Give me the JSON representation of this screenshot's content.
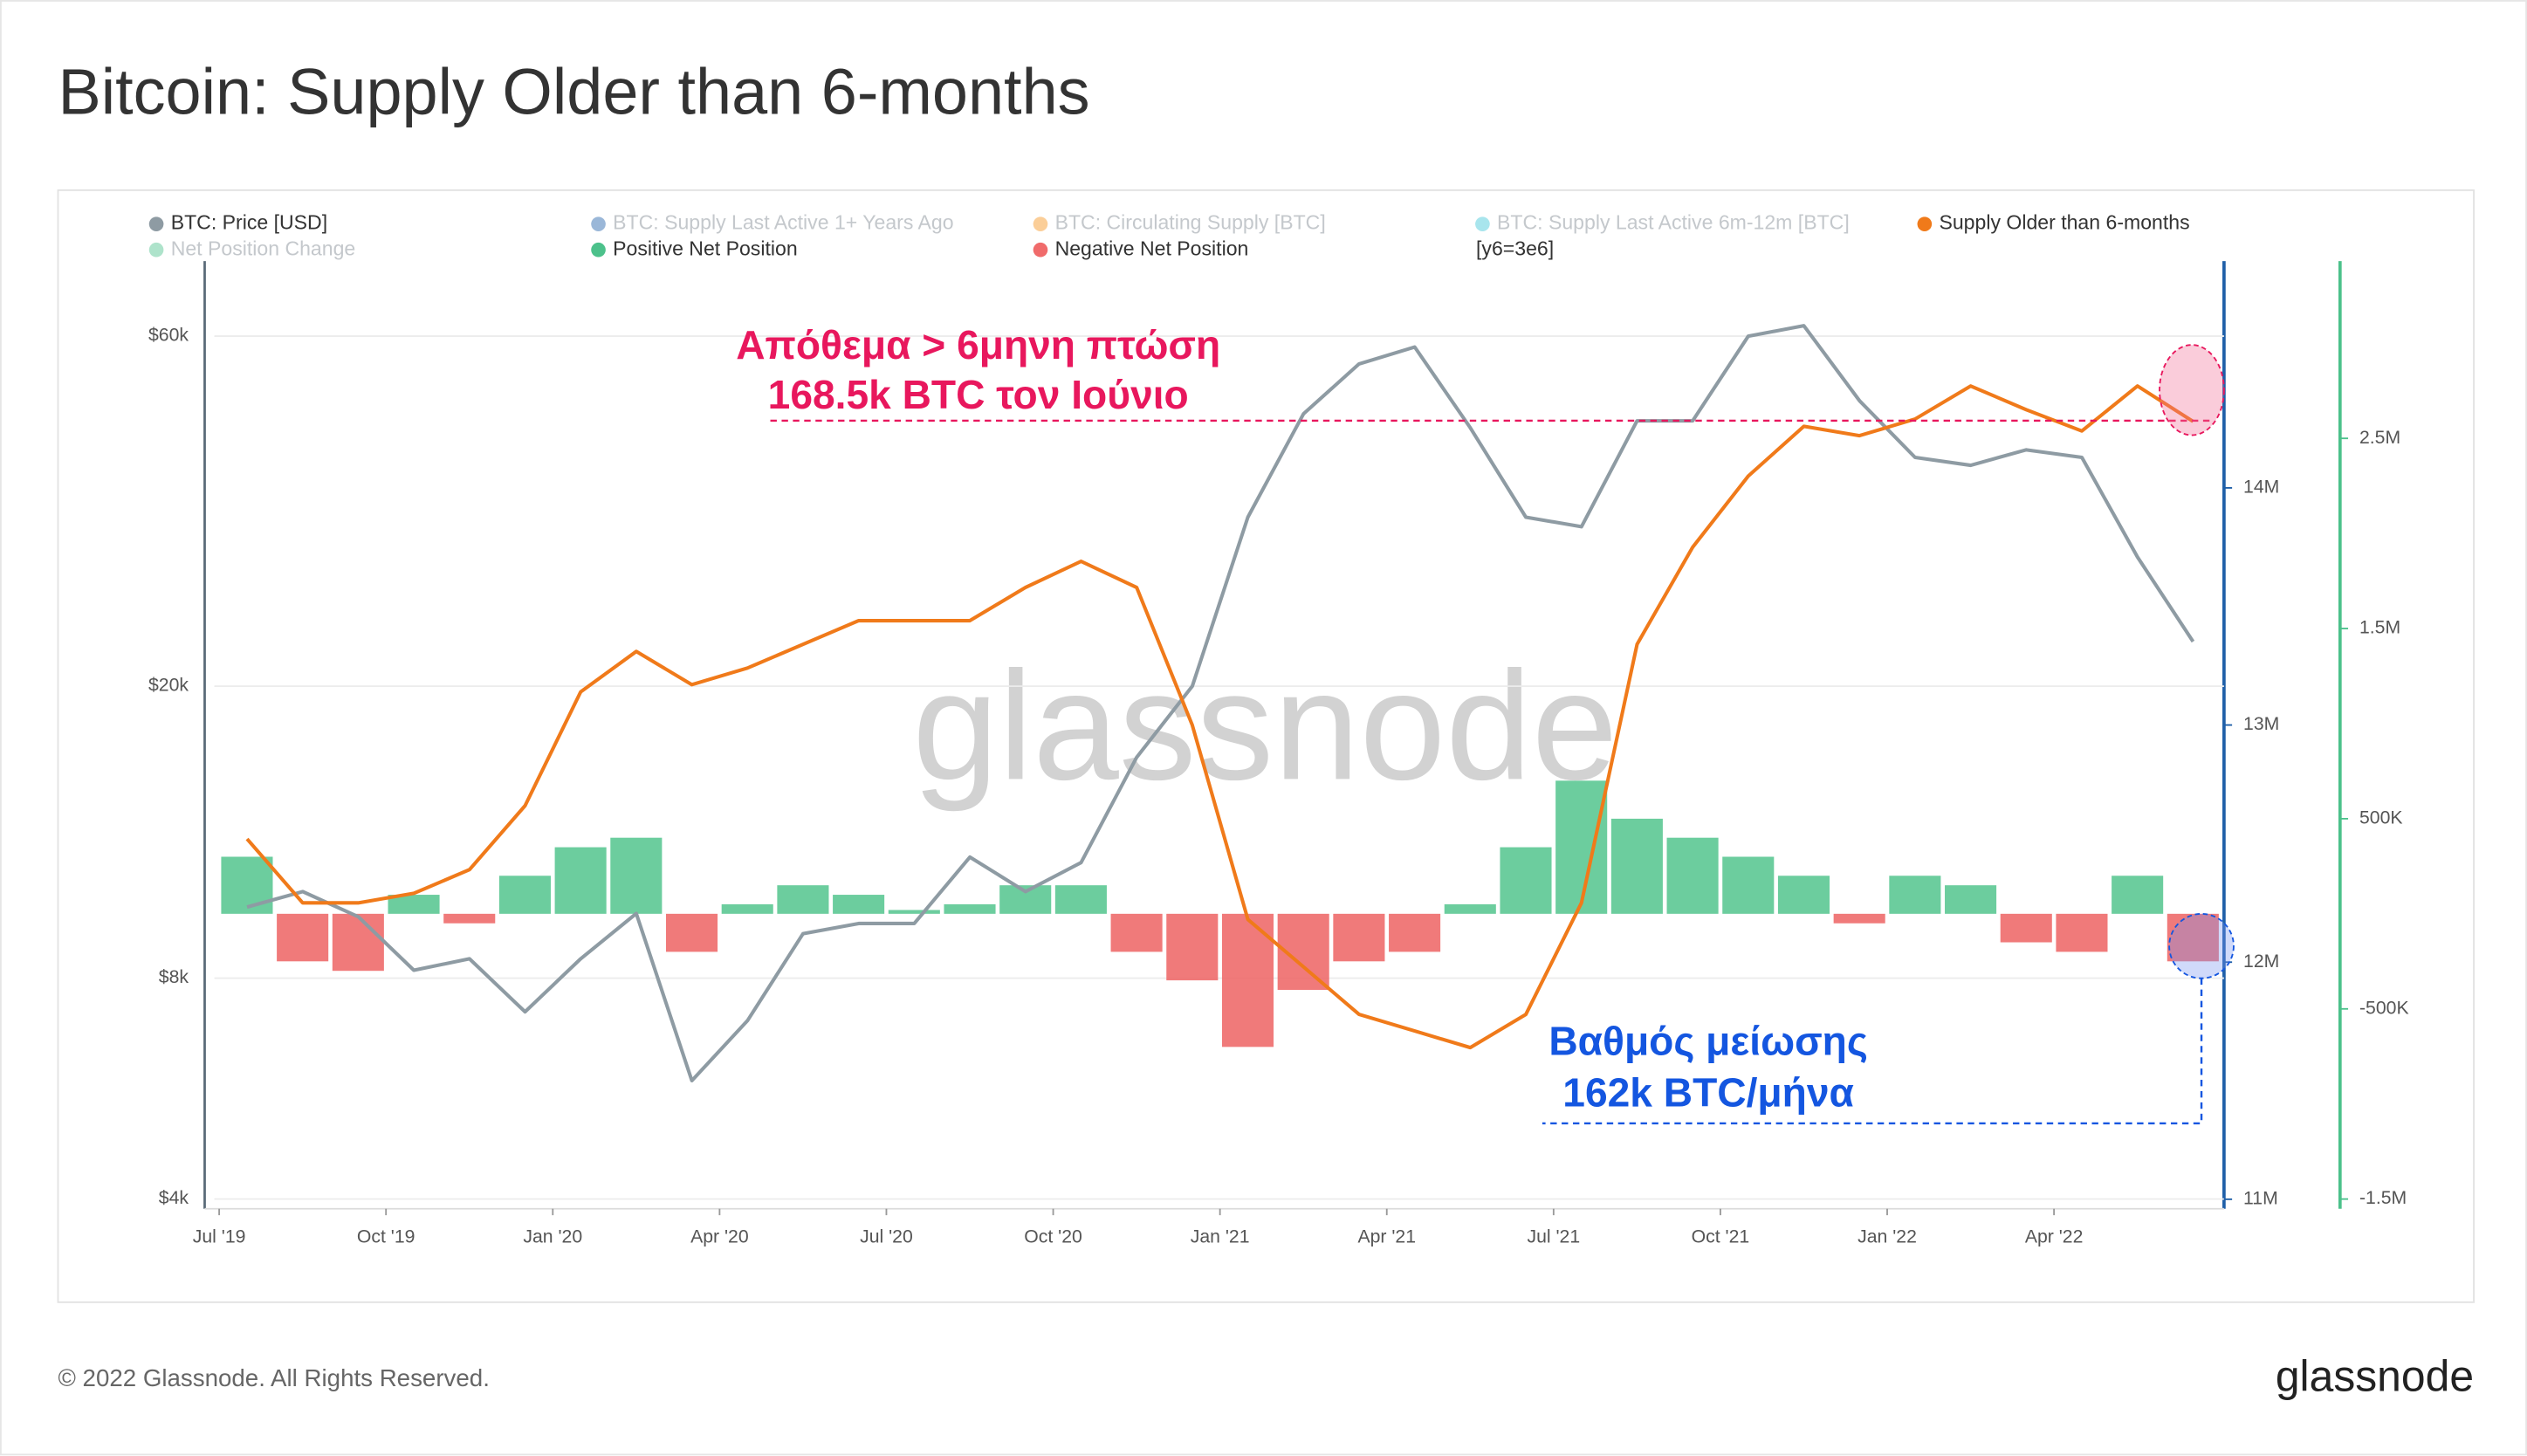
{
  "title": "Bitcoin: Supply Older than 6-months",
  "footer": "© 2022 Glassnode. All Rights Reserved.",
  "logo": "glassnode",
  "chart_data": {
    "type": "line",
    "watermark": "glassnode",
    "legend": [
      {
        "name": "BTC: Price [USD]",
        "color": "#8e9ba3",
        "active": true
      },
      {
        "name": "BTC: Supply Last Active 1+ Years Ago",
        "color": "#1f5fa8",
        "active": false
      },
      {
        "name": "BTC: Circulating Supply [BTC]",
        "color": "#f7931a",
        "active": false
      },
      {
        "name": "BTC: Supply Last Active 6m-12m [BTC]",
        "color": "#3ec6d8",
        "active": false
      },
      {
        "name": "Supply Older than 6-months",
        "color": "#f07a1a",
        "active": true
      },
      {
        "name": "Net Position Change",
        "color": "#4cc18b",
        "active": false
      },
      {
        "name": "Positive Net Position",
        "color": "#4cc18b",
        "active": true
      },
      {
        "name": "Negative Net Position",
        "color": "#f06b6b",
        "active": true
      },
      {
        "name": "[y6=3e6]",
        "active": true
      }
    ],
    "x": [
      "2019-07",
      "2019-08",
      "2019-09",
      "2019-10",
      "2019-11",
      "2019-12",
      "2020-01",
      "2020-02",
      "2020-03",
      "2020-04",
      "2020-05",
      "2020-06",
      "2020-07",
      "2020-08",
      "2020-09",
      "2020-10",
      "2020-11",
      "2020-12",
      "2021-01",
      "2021-02",
      "2021-03",
      "2021-04",
      "2021-05",
      "2021-06",
      "2021-07",
      "2021-08",
      "2021-09",
      "2021-10",
      "2021-11",
      "2021-12",
      "2022-01",
      "2022-02",
      "2022-03",
      "2022-04",
      "2022-05",
      "2022-06"
    ],
    "xticks": [
      {
        "value": "2019-07",
        "label": "Jul '19"
      },
      {
        "value": "2019-10",
        "label": "Oct '19"
      },
      {
        "value": "2020-01",
        "label": "Jan '20"
      },
      {
        "value": "2020-04",
        "label": "Apr '20"
      },
      {
        "value": "2020-07",
        "label": "Jul '20"
      },
      {
        "value": "2020-10",
        "label": "Oct '20"
      },
      {
        "value": "2021-01",
        "label": "Jan '21"
      },
      {
        "value": "2021-04",
        "label": "Apr '21"
      },
      {
        "value": "2021-07",
        "label": "Jul '21"
      },
      {
        "value": "2021-10",
        "label": "Oct '21"
      },
      {
        "value": "2022-01",
        "label": "Jan '22"
      },
      {
        "value": "2022-04",
        "label": "Apr '22"
      }
    ],
    "ylim": [
      3880,
      76700
    ],
    "log_scale": true,
    "yticks": [
      {
        "value": 4000,
        "label": "$4k"
      },
      {
        "value": 8000,
        "label": "$8k"
      },
      {
        "value": 20000,
        "label": "$20k"
      },
      {
        "value": 60000,
        "label": "$60k"
      }
    ],
    "y2lim": [
      10960000,
      14970000
    ],
    "y2ticks": [
      {
        "value": 11000000,
        "label": "11M"
      },
      {
        "value": 12000000,
        "label": "12M"
      },
      {
        "value": 13000000,
        "label": "13M"
      },
      {
        "value": 14000000,
        "label": "14M"
      }
    ],
    "y3lim": [
      -1551000,
      3449000
    ],
    "y3ticks": [
      {
        "value": -1500000,
        "label": "-1.5M"
      },
      {
        "value": -500000,
        "label": "-500K"
      },
      {
        "value": 500000,
        "label": "500K"
      },
      {
        "value": 1500000,
        "label": "1.5M"
      },
      {
        "value": 2500000,
        "label": "2.5M"
      }
    ],
    "series": [
      {
        "type": "bar",
        "axis": "y3",
        "positive_color": "#5cc893",
        "negative_color": "#ee6b6b",
        "values": [
          300000,
          -250000,
          -300000,
          100000,
          -50000,
          200000,
          350000,
          400000,
          -200000,
          50000,
          150000,
          100000,
          20000,
          50000,
          150000,
          150000,
          -200000,
          -350000,
          -700000,
          -400000,
          -250000,
          -200000,
          50000,
          350000,
          700000,
          500000,
          400000,
          300000,
          200000,
          -50000,
          200000,
          150000,
          -150000,
          -200000,
          200000,
          -250000
        ]
      },
      {
        "type": "line",
        "axis": "y",
        "color": "#8e9ba3",
        "values": [
          10000,
          10500,
          9700,
          8200,
          8500,
          7200,
          8500,
          9800,
          5800,
          7000,
          9200,
          9500,
          9500,
          11700,
          10500,
          11500,
          16000,
          20000,
          34000,
          47000,
          55000,
          58000,
          45000,
          34000,
          33000,
          46000,
          46000,
          60000,
          62000,
          49000,
          41000,
          40000,
          42000,
          41000,
          30000,
          23000
        ]
      },
      {
        "type": "line",
        "axis": "y2",
        "color": "#f07a1a",
        "values": [
          12520000,
          12250000,
          12250000,
          12290000,
          12390000,
          12660000,
          13140000,
          13310000,
          13170000,
          13240000,
          13340000,
          13440000,
          13440000,
          13440000,
          13580000,
          13690000,
          13580000,
          13000000,
          12180000,
          11980000,
          11780000,
          11710000,
          11640000,
          11780000,
          12250000,
          13340000,
          13750000,
          14050000,
          14260000,
          14220000,
          14290000,
          14430000,
          14330000,
          14240000,
          14430000,
          14280000
        ]
      }
    ],
    "annotations": [
      {
        "text": "Απόθεμα > 6μηνη πτώση",
        "color": "#e8175d"
      },
      {
        "text": "168.5k BTC τον Ιούνιο",
        "color": "#e8175d"
      },
      {
        "text": "Βαθμός μείωσης",
        "color": "#1456e0"
      },
      {
        "text": "162k BTC/μήνα",
        "color": "#1456e0"
      }
    ]
  }
}
